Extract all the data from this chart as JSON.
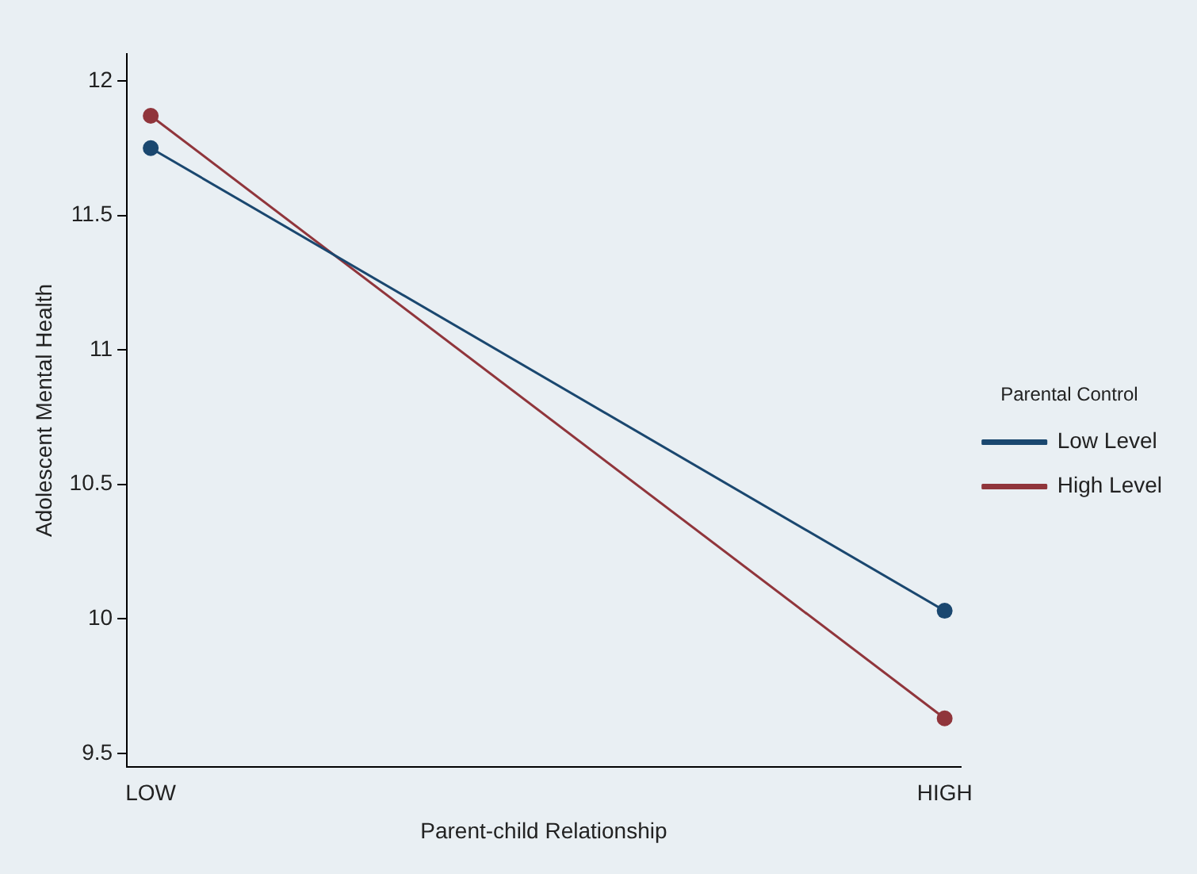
{
  "chart_data": {
    "type": "line",
    "xlabel": "Parent-child Relationship",
    "ylabel": "Adolescent Mental Health",
    "legend_title": "Parental Control",
    "categories": [
      "LOW",
      "HIGH"
    ],
    "series": [
      {
        "name": "Low Level",
        "color": "#1a476f",
        "values": [
          11.75,
          10.03
        ]
      },
      {
        "name": "High Level",
        "color": "#90353b",
        "values": [
          11.87,
          9.63
        ]
      }
    ],
    "ylim": [
      9.45,
      12.1
    ],
    "yticks": [
      9.5,
      10,
      10.5,
      11,
      11.5,
      12
    ],
    "grid": false,
    "legend": "right",
    "marker": "circle",
    "line_style": "solid"
  }
}
